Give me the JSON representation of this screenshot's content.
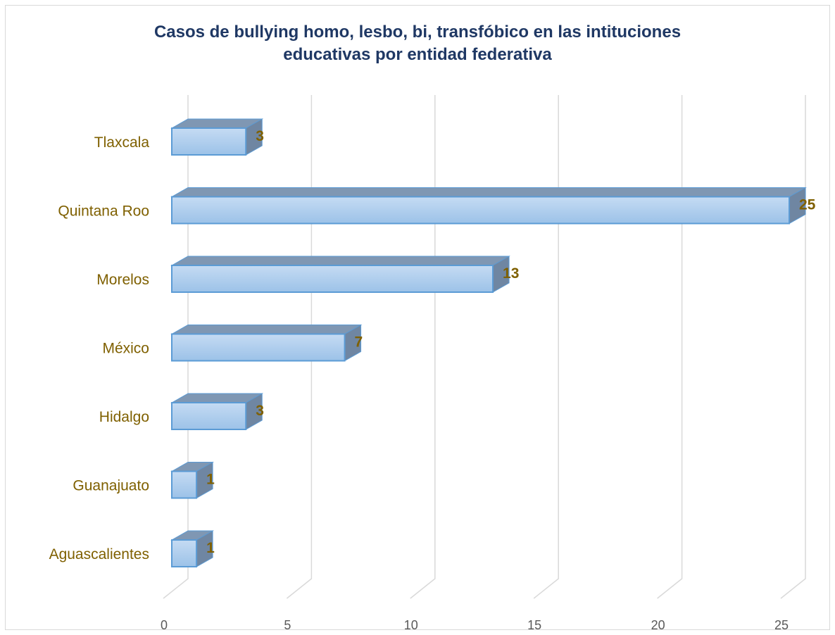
{
  "chart_data": {
    "type": "bar",
    "orientation": "horizontal",
    "style": "3d",
    "title": "Casos de bullying homo, lesbo, bi, transfóbico en las intituciones educativas por entidad federativa",
    "title_lines": [
      "Casos de bullying homo, lesbo, bi, transfóbico en las intituciones",
      "educativas por entidad federativa"
    ],
    "categories": [
      "Aguascalientes",
      "Guanajuato",
      "Hidalgo",
      "México",
      "Morelos",
      "Quintana Roo",
      "Tlaxcala"
    ],
    "values": [
      1,
      1,
      3,
      7,
      13,
      25,
      3
    ],
    "data_labels": [
      "1",
      "1",
      "3",
      "7",
      "13",
      "25",
      "3"
    ],
    "xlim": [
      0,
      25
    ],
    "x_ticks": [
      0,
      5,
      10,
      15,
      20,
      25
    ],
    "x_tick_labels": [
      "0",
      "5",
      "10",
      "15",
      "20",
      "25"
    ],
    "xlabel": "",
    "ylabel": "",
    "grid": true,
    "legend": "none",
    "colors": {
      "title": "#1f3864",
      "category_label": "#7f6000",
      "data_label": "#7f6000",
      "tick_label": "#595959",
      "gridline": "#d9d9d9",
      "bar_face_top": "#c5dbf3",
      "bar_face_bottom": "#9cc2e8",
      "bar_border": "#5b9bd5",
      "bar_top": "#7f97b3",
      "bar_side": "#6f86a2"
    }
  }
}
